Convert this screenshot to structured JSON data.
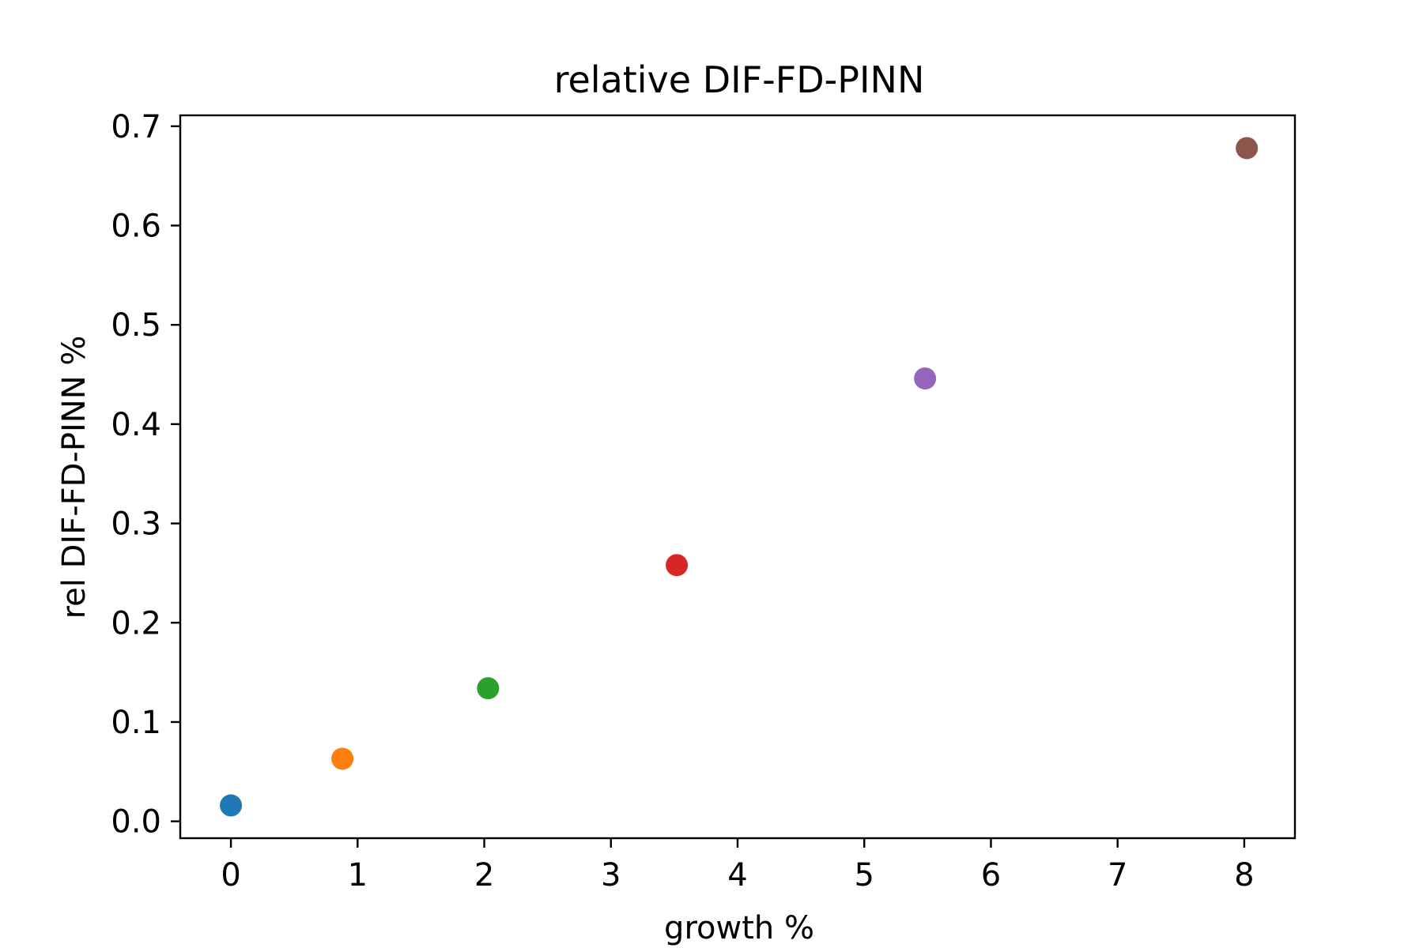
{
  "chart_data": {
    "type": "scatter",
    "title": "relative DIF-FD-PINN",
    "xlabel": "growth %",
    "ylabel": "rel DIF-FD-PINN %",
    "xlim": [
      -0.4,
      8.4
    ],
    "ylim": [
      -0.017,
      0.711
    ],
    "xticks": [
      0,
      1,
      2,
      3,
      4,
      5,
      6,
      7,
      8
    ],
    "xtick_labels": [
      "0",
      "1",
      "2",
      "3",
      "4",
      "5",
      "6",
      "7",
      "8"
    ],
    "yticks": [
      0.0,
      0.1,
      0.2,
      0.3,
      0.4,
      0.5,
      0.6,
      0.7
    ],
    "ytick_labels": [
      "0.0",
      "0.1",
      "0.2",
      "0.3",
      "0.4",
      "0.5",
      "0.6",
      "0.7"
    ],
    "grid": false,
    "legend": false,
    "points": [
      {
        "x": 0.0,
        "y": 0.016,
        "color": "#1f77b4"
      },
      {
        "x": 0.88,
        "y": 0.063,
        "color": "#ff7f0e"
      },
      {
        "x": 2.03,
        "y": 0.134,
        "color": "#2ca02c"
      },
      {
        "x": 3.52,
        "y": 0.258,
        "color": "#d62728"
      },
      {
        "x": 5.48,
        "y": 0.446,
        "color": "#9467bd"
      },
      {
        "x": 8.02,
        "y": 0.678,
        "color": "#8c564b"
      }
    ]
  }
}
